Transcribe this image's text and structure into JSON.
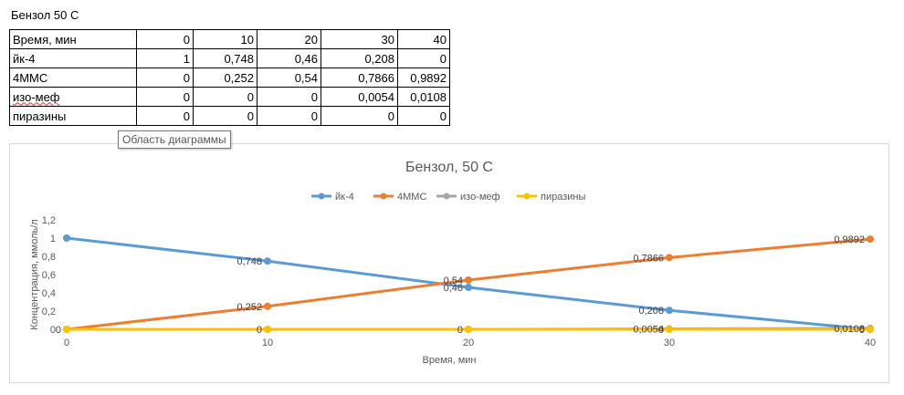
{
  "sheet": {
    "title": "Бензол 50 С",
    "header_label": "Время, мин",
    "times": [
      "0",
      "10",
      "20",
      "30",
      "40"
    ],
    "rows": [
      {
        "label": "йк-4",
        "values": [
          "1",
          "0,748",
          "0,46",
          "0,208",
          "0"
        ]
      },
      {
        "label": "4ММС",
        "values": [
          "0",
          "0,252",
          "0,54",
          "0,7866",
          "0,9892"
        ]
      },
      {
        "label": "изо-меф",
        "values": [
          "0",
          "0",
          "0",
          "0,0054",
          "0,0108"
        ]
      },
      {
        "label": "пиразины",
        "values": [
          "0",
          "0",
          "0",
          "0",
          "0"
        ]
      }
    ]
  },
  "tooltip": "Область диаграммы",
  "chart_data": {
    "type": "line",
    "title": "Бензол, 50 С",
    "xlabel": "Время, мин",
    "ylabel": "Концентрация, ммоль/л",
    "x": [
      0,
      10,
      20,
      30,
      40
    ],
    "xlim": [
      0,
      40
    ],
    "ylim": [
      0,
      1.2
    ],
    "yticks": [
      0,
      0.2,
      0.4,
      0.6,
      0.8,
      1,
      1.2
    ],
    "ytick_labels": [
      "0",
      "0,2",
      "0,4",
      "0,6",
      "0,8",
      "1",
      "1,2"
    ],
    "xtick_labels": [
      "0",
      "10",
      "20",
      "30",
      "40"
    ],
    "legend_position": "top",
    "grid": false,
    "series": [
      {
        "name": "йк-4",
        "color": "#5b9bd5",
        "values": [
          1,
          0.748,
          0.46,
          0.208,
          0
        ],
        "labels": [
          "",
          "0,748",
          "0,46",
          "0,208",
          ""
        ]
      },
      {
        "name": "4ММС",
        "color": "#ed7d31",
        "values": [
          0,
          0.252,
          0.54,
          0.7866,
          0.9892
        ],
        "labels": [
          "",
          "0,252",
          "0,54",
          "0,7866",
          "0,9892"
        ]
      },
      {
        "name": "изо-меф",
        "color": "#a5a5a5",
        "values": [
          0,
          0,
          0,
          0.0054,
          0.0108
        ],
        "labels": [
          "",
          "",
          "",
          "0,0054",
          "0,0108"
        ]
      },
      {
        "name": "пиразины",
        "color": "#ffc000",
        "values": [
          0,
          0,
          0,
          0,
          0
        ],
        "labels": [
          "0",
          "0",
          "0",
          "0",
          "0"
        ]
      }
    ]
  }
}
